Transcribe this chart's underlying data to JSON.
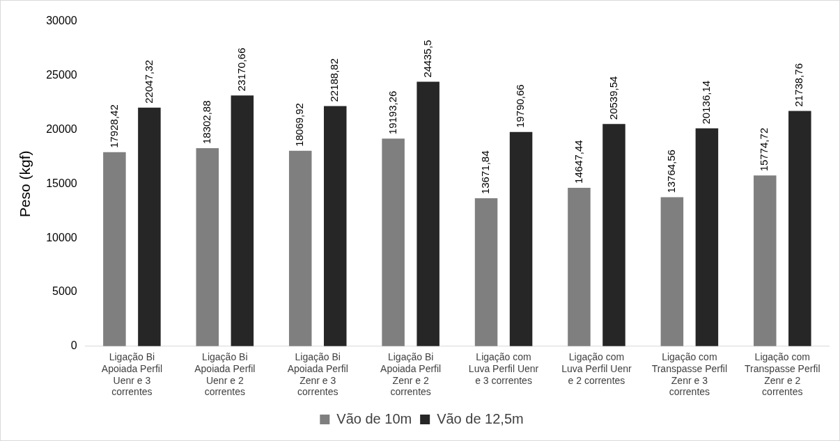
{
  "chart_data": {
    "type": "bar",
    "ylabel": "Peso (kgf)",
    "categories": [
      "Ligação Bi Apoiada Perfil Uenr e 3 correntes",
      "Ligação Bi Apoiada Perfil Uenr e 2 correntes",
      "Ligação Bi Apoiada Perfil Zenr e 3 correntes",
      "Ligação Bi Apoiada Perfil Zenr e 2 correntes",
      "Ligação com Luva Perfil Uenr e 3 correntes",
      "Ligação com Luva Perfil Uenr e 2 correntes",
      "Ligação com Transpasse Perfil Zenr e 3 correntes",
      "Ligação com Transpasse Perfil Zenr e 2 correntes"
    ],
    "series": [
      {
        "name": "Vão de 10m",
        "color": "#7f7f7f",
        "values": [
          17928.42,
          18302.88,
          18069.92,
          19193.26,
          13671.84,
          14647.44,
          13764.56,
          15774.72
        ],
        "value_labels": [
          "17928,42",
          "18302,88",
          "18069,92",
          "19193,26",
          "13671,84",
          "14647,44",
          "13764,56",
          "15774,72"
        ]
      },
      {
        "name": "Vão de 12,5m",
        "color": "#262626",
        "values": [
          22047.32,
          23170.66,
          22188.82,
          24435.5,
          19790.66,
          20539.54,
          20136.14,
          21738.76
        ],
        "value_labels": [
          "22047,32",
          "23170,66",
          "22188,82",
          "24435,5",
          "19790,66",
          "20539,54",
          "20136,14",
          "21738,76"
        ]
      }
    ],
    "ylim": [
      0,
      30000
    ],
    "yticks": [
      0,
      5000,
      10000,
      15000,
      20000,
      25000,
      30000
    ],
    "grid": false,
    "legend": "bottom"
  }
}
